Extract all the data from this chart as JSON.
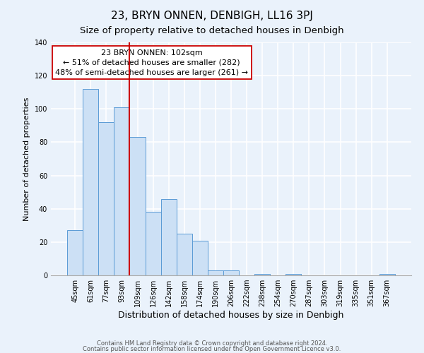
{
  "title": "23, BRYN ONNEN, DENBIGH, LL16 3PJ",
  "subtitle": "Size of property relative to detached houses in Denbigh",
  "xlabel": "Distribution of detached houses by size in Denbigh",
  "ylabel": "Number of detached properties",
  "bar_labels": [
    "45sqm",
    "61sqm",
    "77sqm",
    "93sqm",
    "109sqm",
    "126sqm",
    "142sqm",
    "158sqm",
    "174sqm",
    "190sqm",
    "206sqm",
    "222sqm",
    "238sqm",
    "254sqm",
    "270sqm",
    "287sqm",
    "303sqm",
    "319sqm",
    "335sqm",
    "351sqm",
    "367sqm"
  ],
  "bar_values": [
    27,
    112,
    92,
    101,
    83,
    38,
    46,
    25,
    21,
    3,
    3,
    0,
    1,
    0,
    1,
    0,
    0,
    0,
    0,
    0,
    1
  ],
  "bar_color": "#cce0f5",
  "bar_edge_color": "#5b9bd5",
  "vline_pos": 3.5,
  "vline_color": "#cc0000",
  "annotation_text": "23 BRYN ONNEN: 102sqm\n← 51% of detached houses are smaller (282)\n48% of semi-detached houses are larger (261) →",
  "annotation_box_color": "#ffffff",
  "annotation_box_edge": "#cc0000",
  "ylim": [
    0,
    140
  ],
  "yticks": [
    0,
    20,
    40,
    60,
    80,
    100,
    120,
    140
  ],
  "footer1": "Contains HM Land Registry data © Crown copyright and database right 2024.",
  "footer2": "Contains public sector information licensed under the Open Government Licence v3.0.",
  "background_color": "#eaf2fb",
  "plot_bg_color": "#eaf2fb",
  "grid_color": "#ffffff",
  "title_fontsize": 11,
  "subtitle_fontsize": 9.5,
  "tick_fontsize": 7,
  "ylabel_fontsize": 8,
  "xlabel_fontsize": 9
}
